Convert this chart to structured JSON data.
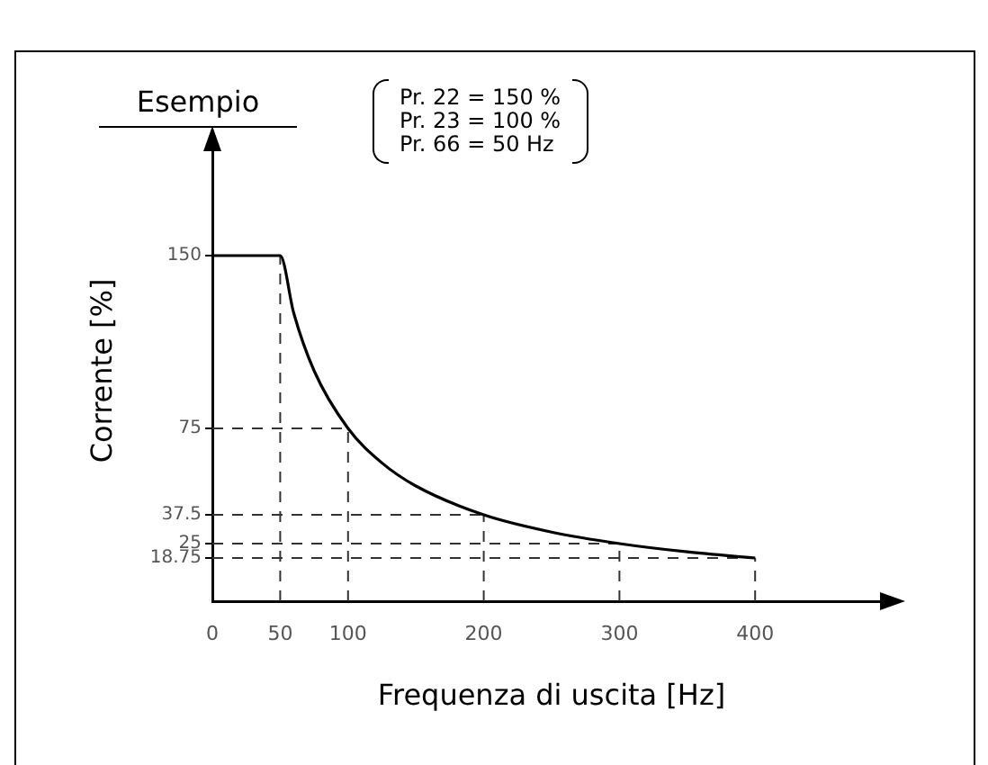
{
  "chart_data": {
    "type": "line",
    "title": "Esempio",
    "xlabel": "Frequenza di uscita [Hz]",
    "ylabel": "Corrente [%]",
    "annotations": [
      "Pr. 22 = 150 %",
      "Pr. 23 = 100 %",
      "Pr. 66 = 50 Hz"
    ],
    "x": [
      0,
      50,
      60,
      75,
      100,
      125,
      150,
      200,
      250,
      300,
      350,
      400
    ],
    "series": [
      {
        "color": "#000000",
        "values": [
          150,
          150,
          125,
          100,
          75,
          60,
          50,
          37.5,
          30,
          25,
          21.4,
          18.75
        ]
      }
    ],
    "xlim": [
      0,
      500
    ],
    "ylim": [
      0,
      200
    ],
    "xticks": [
      0,
      50,
      100,
      200,
      300,
      400
    ],
    "yticks": [
      18.75,
      25,
      37.5,
      75,
      150
    ],
    "ref_lines": [
      {
        "axis": "x",
        "value": 50,
        "line_style": "dashed"
      },
      {
        "axis": "x",
        "value": 100,
        "line_style": "dashed"
      },
      {
        "axis": "x",
        "value": 200,
        "line_style": "dashed"
      },
      {
        "axis": "x",
        "value": 300,
        "line_style": "dashed"
      },
      {
        "axis": "x",
        "value": 400,
        "line_style": "dashed"
      },
      {
        "axis": "y",
        "value": 75,
        "line_style": "dashed"
      },
      {
        "axis": "y",
        "value": 37.5,
        "line_style": "dashed"
      },
      {
        "axis": "y",
        "value": 25,
        "line_style": "dashed"
      },
      {
        "axis": "y",
        "value": 18.75,
        "line_style": "dashed"
      }
    ],
    "grid": false,
    "legend": false,
    "marker": "none",
    "line_style": "solid"
  }
}
